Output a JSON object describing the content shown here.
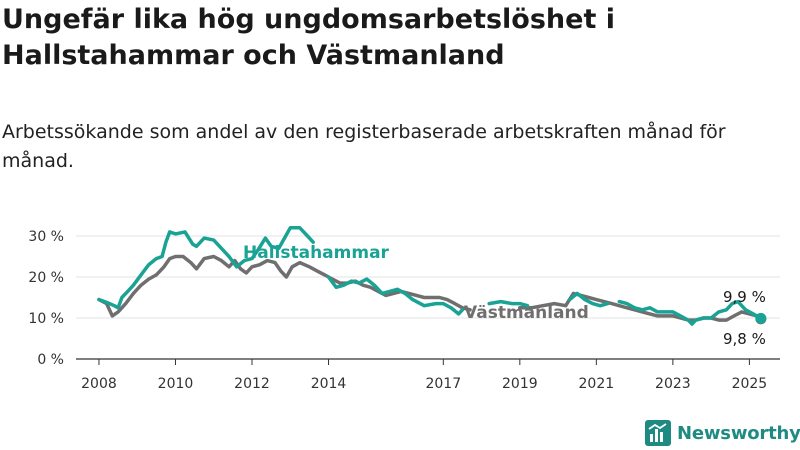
{
  "title": "Ungefär lika hög ungdomsarbetslöshet i Hallstahammar och Västmanland",
  "subtitle": "Arbetssökande som andel av den registerbaserade arbetskraften månad för månad.",
  "brand": "Newsworthy",
  "colors": {
    "hallstahammar": "#1aa394",
    "vastmanland": "#6f6f6f",
    "brand": "#1f8a82",
    "grid": "#e3e3e3"
  },
  "chart_data": {
    "type": "line",
    "ylim": [
      0,
      30
    ],
    "y_ticks": [
      {
        "value": 0,
        "label": "0 %"
      },
      {
        "value": 10,
        "label": "10 %"
      },
      {
        "value": 20,
        "label": "20 %"
      },
      {
        "value": 30,
        "label": "30 %"
      }
    ],
    "x_ticks": [
      {
        "value": 2008,
        "label": "2008"
      },
      {
        "value": 2010,
        "label": "2010"
      },
      {
        "value": 2012,
        "label": "2012"
      },
      {
        "value": 2014,
        "label": "2014"
      },
      {
        "value": 2017,
        "label": "2017"
      },
      {
        "value": 2019,
        "label": "2019"
      },
      {
        "value": 2021,
        "label": "2021"
      },
      {
        "value": 2023,
        "label": "2023"
      },
      {
        "value": 2025,
        "label": "2025"
      }
    ],
    "series": [
      {
        "name": "Hallstahammar",
        "end_label": "9,9 %",
        "segments": [
          [
            [
              2008.0,
              14.5
            ],
            [
              2008.2,
              13.8
            ],
            [
              2008.4,
              13.0
            ],
            [
              2008.5,
              12.5
            ],
            [
              2008.6,
              15.0
            ],
            [
              2008.75,
              16.5
            ],
            [
              2008.9,
              18.0
            ],
            [
              2009.1,
              20.5
            ],
            [
              2009.3,
              23.0
            ],
            [
              2009.5,
              24.5
            ],
            [
              2009.65,
              25.0
            ],
            [
              2009.75,
              28.5
            ],
            [
              2009.85,
              31.0
            ],
            [
              2010.0,
              30.5
            ],
            [
              2010.25,
              31.0
            ],
            [
              2010.45,
              28.0
            ],
            [
              2010.55,
              27.5
            ],
            [
              2010.75,
              29.5
            ],
            [
              2011.0,
              29.0
            ],
            [
              2011.2,
              27.0
            ],
            [
              2011.4,
              25.0
            ],
            [
              2011.6,
              22.5
            ],
            [
              2011.8,
              24.0
            ],
            [
              2012.0,
              24.5
            ],
            [
              2012.15,
              26.5
            ],
            [
              2012.35,
              29.5
            ],
            [
              2012.5,
              27.5
            ],
            [
              2012.7,
              27.0
            ],
            [
              2012.85,
              29.5
            ],
            [
              2013.0,
              32.0
            ],
            [
              2013.25,
              32.0
            ],
            [
              2013.45,
              30.0
            ],
            [
              2013.6,
              28.5
            ]
          ],
          [
            [
              2014.0,
              20.0
            ],
            [
              2014.2,
              17.5
            ],
            [
              2014.4,
              18.0
            ],
            [
              2014.6,
              19.0
            ],
            [
              2014.8,
              18.5
            ],
            [
              2015.0,
              19.5
            ],
            [
              2015.2,
              18.0
            ],
            [
              2015.4,
              16.0
            ],
            [
              2015.6,
              16.5
            ],
            [
              2015.8,
              17.0
            ],
            [
              2016.0,
              16.0
            ],
            [
              2016.2,
              14.5
            ],
            [
              2016.5,
              13.0
            ],
            [
              2016.8,
              13.5
            ],
            [
              2017.0,
              13.5
            ],
            [
              2017.2,
              12.5
            ],
            [
              2017.4,
              11.0
            ],
            [
              2017.5,
              12.0
            ]
          ],
          [
            [
              2018.2,
              13.5
            ],
            [
              2018.5,
              14.0
            ],
            [
              2018.8,
              13.5
            ],
            [
              2019.0,
              13.5
            ],
            [
              2019.2,
              13.0
            ]
          ],
          [
            [
              2020.3,
              14.5
            ],
            [
              2020.5,
              16.0
            ],
            [
              2020.7,
              14.5
            ],
            [
              2020.9,
              13.5
            ],
            [
              2021.1,
              13.0
            ],
            [
              2021.3,
              13.5
            ]
          ],
          [
            [
              2021.6,
              14.0
            ],
            [
              2021.8,
              13.5
            ],
            [
              2022.0,
              12.5
            ],
            [
              2022.2,
              12.0
            ],
            [
              2022.4,
              12.5
            ],
            [
              2022.6,
              11.5
            ],
            [
              2022.8,
              11.5
            ],
            [
              2023.0,
              11.5
            ],
            [
              2023.2,
              10.5
            ],
            [
              2023.4,
              9.5
            ],
            [
              2023.5,
              8.5
            ],
            [
              2023.6,
              9.5
            ],
            [
              2023.8,
              10.0
            ],
            [
              2024.0,
              10.0
            ],
            [
              2024.2,
              11.5
            ],
            [
              2024.4,
              12.0
            ],
            [
              2024.55,
              13.5
            ],
            [
              2024.7,
              14.0
            ],
            [
              2024.9,
              12.0
            ],
            [
              2025.1,
              11.0
            ],
            [
              2025.3,
              9.9
            ]
          ]
        ]
      },
      {
        "name": "Västmanland",
        "end_label": "9,8 %",
        "segments": [
          [
            [
              2008.0,
              14.5
            ],
            [
              2008.2,
              13.5
            ],
            [
              2008.35,
              10.5
            ],
            [
              2008.5,
              11.5
            ],
            [
              2008.7,
              13.5
            ],
            [
              2008.9,
              16.0
            ],
            [
              2009.1,
              18.0
            ],
            [
              2009.3,
              19.5
            ],
            [
              2009.5,
              20.5
            ],
            [
              2009.7,
              22.5
            ],
            [
              2009.85,
              24.5
            ],
            [
              2010.0,
              25.0
            ],
            [
              2010.2,
              25.0
            ],
            [
              2010.4,
              23.5
            ],
            [
              2010.55,
              22.0
            ],
            [
              2010.75,
              24.5
            ],
            [
              2011.0,
              25.0
            ],
            [
              2011.2,
              24.0
            ],
            [
              2011.4,
              22.5
            ],
            [
              2011.55,
              24.0
            ],
            [
              2011.7,
              22.0
            ],
            [
              2011.85,
              21.0
            ],
            [
              2012.0,
              22.5
            ],
            [
              2012.2,
              23.0
            ],
            [
              2012.4,
              24.0
            ],
            [
              2012.6,
              23.5
            ],
            [
              2012.75,
              21.5
            ],
            [
              2012.9,
              20.0
            ],
            [
              2013.05,
              22.5
            ],
            [
              2013.25,
              23.5
            ],
            [
              2013.5,
              22.5
            ],
            [
              2013.7,
              21.5
            ],
            [
              2013.9,
              20.5
            ],
            [
              2014.1,
              19.5
            ],
            [
              2014.3,
              18.5
            ],
            [
              2014.5,
              18.5
            ],
            [
              2014.7,
              19.0
            ],
            [
              2014.9,
              18.0
            ],
            [
              2015.1,
              17.5
            ],
            [
              2015.3,
              16.5
            ],
            [
              2015.5,
              15.5
            ],
            [
              2015.7,
              16.0
            ],
            [
              2015.9,
              16.5
            ],
            [
              2016.1,
              16.0
            ],
            [
              2016.3,
              15.5
            ],
            [
              2016.5,
              15.0
            ],
            [
              2016.7,
              15.0
            ],
            [
              2016.9,
              15.0
            ],
            [
              2017.1,
              14.5
            ],
            [
              2017.3,
              13.5
            ],
            [
              2017.5,
              12.5
            ],
            [
              2017.7,
              12.0
            ]
          ],
          [
            [
              2019.0,
              12.5
            ],
            [
              2019.3,
              12.5
            ],
            [
              2019.6,
              13.0
            ],
            [
              2019.9,
              13.5
            ],
            [
              2020.2,
              13.0
            ],
            [
              2020.4,
              16.0
            ],
            [
              2020.6,
              15.5
            ],
            [
              2020.8,
              15.0
            ],
            [
              2021.0,
              14.5
            ],
            [
              2021.2,
              14.0
            ],
            [
              2021.4,
              13.5
            ],
            [
              2021.6,
              13.0
            ],
            [
              2021.8,
              12.5
            ],
            [
              2022.0,
              12.0
            ],
            [
              2022.2,
              11.5
            ],
            [
              2022.4,
              11.0
            ],
            [
              2022.6,
              10.5
            ],
            [
              2022.8,
              10.5
            ],
            [
              2023.0,
              10.5
            ],
            [
              2023.2,
              10.0
            ],
            [
              2023.4,
              9.5
            ],
            [
              2023.6,
              9.5
            ],
            [
              2023.8,
              10.0
            ],
            [
              2024.0,
              10.0
            ],
            [
              2024.2,
              9.5
            ],
            [
              2024.4,
              9.5
            ],
            [
              2024.6,
              10.5
            ],
            [
              2024.8,
              11.5
            ],
            [
              2025.0,
              11.0
            ],
            [
              2025.2,
              10.5
            ],
            [
              2025.3,
              9.8
            ]
          ]
        ]
      }
    ]
  }
}
